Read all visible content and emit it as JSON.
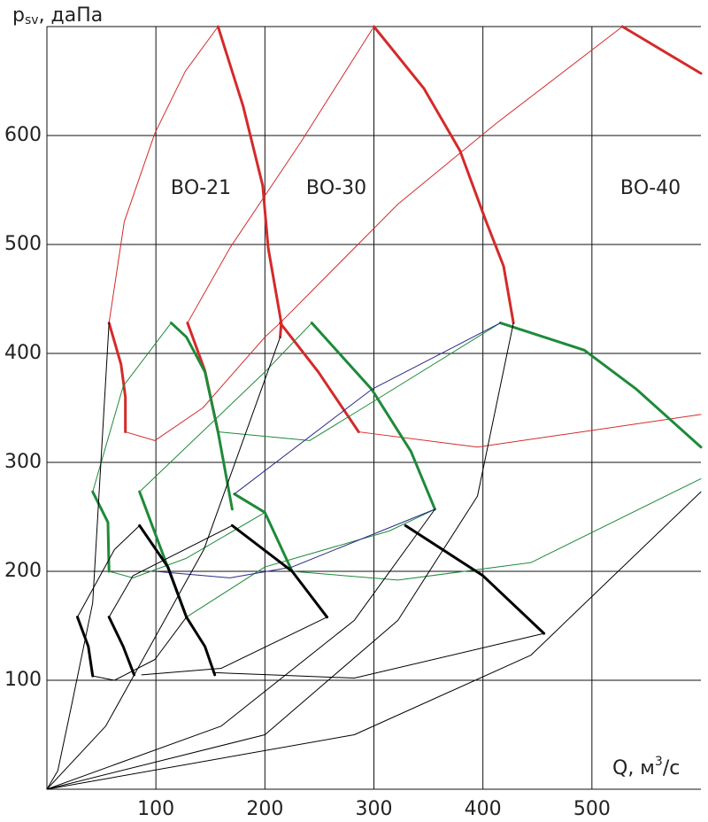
{
  "chart_data": {
    "type": "line",
    "ylabel": {
      "main": "p",
      "sub": "sv",
      "rest": ", даПа"
    },
    "xlabel": {
      "main": "Q, м",
      "sup": "3",
      "rest": "/с"
    },
    "annotations": [
      "ВО-21",
      "ВО-30",
      "ВО-40"
    ],
    "xlim": [
      0,
      600
    ],
    "ylim": [
      0,
      700
    ],
    "xticks": [
      100,
      200,
      300,
      400,
      500
    ],
    "yticks": [
      100,
      200,
      300,
      400,
      500,
      600
    ],
    "grid": true,
    "series": [
      {
        "color": "#d42a2a",
        "width": 3,
        "x": [
          57,
          68,
          72,
          72
        ],
        "y": [
          428,
          390,
          360,
          328
        ]
      },
      {
        "color": "#d42a2a",
        "width": 3,
        "x": [
          129,
          145,
          157
        ],
        "y": [
          428,
          384,
          328
        ]
      },
      {
        "color": "#d42a2a",
        "width": 3,
        "x": [
          157,
          180,
          198,
          203,
          215,
          214
        ],
        "y": [
          700,
          627,
          554,
          497,
          428,
          415
        ]
      },
      {
        "color": "#d42a2a",
        "width": 3,
        "x": [
          214,
          249,
          286
        ],
        "y": [
          428,
          383,
          328
        ]
      },
      {
        "color": "#d42a2a",
        "width": 3,
        "x": [
          300,
          346,
          379,
          403,
          419,
          428
        ],
        "y": [
          700,
          643,
          586,
          521,
          480,
          428
        ]
      },
      {
        "color": "#d42a2a",
        "width": 3,
        "x": [
          528,
          600
        ],
        "y": [
          700,
          657
        ]
      },
      {
        "color": "#d42a2a",
        "width": 1,
        "x": [
          57,
          71,
          99,
          127,
          157
        ],
        "y": [
          428,
          521,
          602,
          659,
          700
        ]
      },
      {
        "color": "#d42a2a",
        "width": 1,
        "x": [
          129,
          168,
          233,
          300
        ],
        "y": [
          428,
          497,
          594,
          700
        ]
      },
      {
        "color": "#d42a2a",
        "width": 1,
        "x": [
          214,
          322,
          412,
          528
        ],
        "y": [
          428,
          537,
          611,
          700
        ]
      },
      {
        "color": "#d42a2a",
        "width": 1,
        "x": [
          72,
          99,
          143,
          200,
          214
        ],
        "y": [
          328,
          320,
          350,
          415,
          428
        ]
      },
      {
        "color": "#d42a2a",
        "width": 1,
        "x": [
          286,
          395,
          600
        ],
        "y": [
          328,
          314,
          344
        ]
      },
      {
        "color": "#1e8a3a",
        "width": 3,
        "x": [
          42,
          56,
          57
        ],
        "y": [
          273,
          245,
          200
        ]
      },
      {
        "color": "#1e8a3a",
        "width": 3,
        "x": [
          114,
          128,
          145,
          157,
          170
        ],
        "y": [
          428,
          415,
          383,
          328,
          257
        ]
      },
      {
        "color": "#1e8a3a",
        "width": 3,
        "x": [
          85,
          128
        ],
        "y": [
          273,
          158
        ]
      },
      {
        "color": "#1e8a3a",
        "width": 3,
        "x": [
          243,
          298,
          334,
          356
        ],
        "y": [
          428,
          367,
          310,
          257
        ]
      },
      {
        "color": "#1e8a3a",
        "width": 3,
        "x": [
          172,
          200,
          225
        ],
        "y": [
          271,
          254,
          200
        ]
      },
      {
        "color": "#1e8a3a",
        "width": 3,
        "x": [
          416,
          493,
          541,
          600
        ],
        "y": [
          428,
          403,
          367,
          314
        ]
      },
      {
        "color": "#1e8a3a",
        "width": 1,
        "x": [
          42,
          70,
          114
        ],
        "y": [
          273,
          370,
          428
        ]
      },
      {
        "color": "#1e8a3a",
        "width": 1,
        "x": [
          85,
          200,
          243
        ],
        "y": [
          273,
          383,
          428
        ]
      },
      {
        "color": "#1e8a3a",
        "width": 1,
        "x": [
          157,
          241,
          290,
          416
        ],
        "y": [
          328,
          320,
          350,
          428
        ]
      },
      {
        "color": "#1e8a3a",
        "width": 1,
        "x": [
          57,
          79,
          128,
          200
        ],
        "y": [
          200,
          194,
          212,
          254
        ]
      },
      {
        "color": "#1e8a3a",
        "width": 1,
        "x": [
          128,
          200,
          314,
          356
        ],
        "y": [
          158,
          204,
          237,
          257
        ]
      },
      {
        "color": "#1e8a3a",
        "width": 1,
        "x": [
          225,
          322,
          444,
          600
        ],
        "y": [
          200,
          192,
          208,
          285
        ]
      },
      {
        "color": "#2a2a8a",
        "width": 1,
        "x": [
          172,
          298,
          416
        ],
        "y": [
          271,
          367,
          428
        ]
      },
      {
        "color": "#2a2a8a",
        "width": 1,
        "x": [
          99,
          168,
          225,
          356
        ],
        "y": [
          200,
          194,
          204,
          257
        ]
      },
      {
        "color": "#000000",
        "width": 3,
        "x": [
          28,
          38,
          42
        ],
        "y": [
          158,
          131,
          104
        ]
      },
      {
        "color": "#000000",
        "width": 3,
        "x": [
          57,
          70,
          80
        ],
        "y": [
          158,
          131,
          105
        ]
      },
      {
        "color": "#000000",
        "width": 3,
        "x": [
          85,
          111,
          128
        ],
        "y": [
          242,
          204,
          158
        ]
      },
      {
        "color": "#000000",
        "width": 3,
        "x": [
          128,
          145,
          154
        ],
        "y": [
          158,
          131,
          105
        ]
      },
      {
        "color": "#000000",
        "width": 3,
        "x": [
          170,
          225,
          257
        ],
        "y": [
          242,
          200,
          158
        ]
      },
      {
        "color": "#000000",
        "width": 3,
        "x": [
          329,
          400,
          456
        ],
        "y": [
          242,
          196,
          143
        ]
      },
      {
        "color": "#000000",
        "width": 1,
        "x": [
          0,
          10,
          22,
          42,
          57
        ],
        "y": [
          0,
          17,
          74,
          171,
          428
        ]
      },
      {
        "color": "#000000",
        "width": 1,
        "x": [
          28,
          62,
          85
        ],
        "y": [
          158,
          220,
          242
        ]
      },
      {
        "color": "#000000",
        "width": 1,
        "x": [
          57,
          79,
          170
        ],
        "y": [
          158,
          196,
          242
        ]
      },
      {
        "color": "#000000",
        "width": 1,
        "x": [
          0,
          54,
          144,
          214
        ],
        "y": [
          0,
          58,
          220,
          415
        ]
      },
      {
        "color": "#000000",
        "width": 1,
        "x": [
          0,
          160,
          282,
          356
        ],
        "y": [
          0,
          58,
          155,
          257
        ]
      },
      {
        "color": "#000000",
        "width": 1,
        "x": [
          0,
          200,
          322,
          395,
          428
        ],
        "y": [
          0,
          50,
          155,
          269,
          428
        ]
      },
      {
        "color": "#000000",
        "width": 1,
        "x": [
          0,
          282,
          444,
          600
        ],
        "y": [
          0,
          50,
          123,
          273
        ]
      },
      {
        "color": "#000000",
        "width": 1,
        "x": [
          42,
          62,
          99,
          128
        ],
        "y": [
          104,
          100,
          119,
          158
        ]
      },
      {
        "color": "#000000",
        "width": 1,
        "x": [
          87,
          160,
          257
        ],
        "y": [
          105,
          111,
          158
        ]
      },
      {
        "color": "#000000",
        "width": 1,
        "x": [
          154,
          282,
          456
        ],
        "y": [
          107,
          102,
          143
        ]
      }
    ]
  }
}
